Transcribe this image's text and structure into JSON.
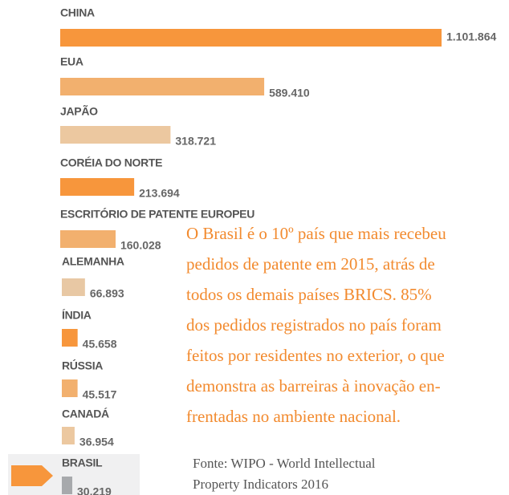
{
  "chart_data": {
    "type": "bar",
    "categories": [
      "CHINA",
      "EUA",
      "JAPÃO",
      "CORÉIA DO NORTE",
      "ESCRITÓRIO DE PATENTE EUROPEU",
      "ALEMANHA",
      "ÍNDIA",
      "RÚSSIA",
      "CANADÁ",
      "BRASIL"
    ],
    "values": [
      1101864,
      589410,
      318721,
      213694,
      160028,
      66893,
      45658,
      45517,
      36954,
      30219
    ],
    "value_labels": [
      "1.101.864",
      "589.410",
      "318.721",
      "213.694",
      "160.028",
      "66.893",
      "45.658",
      "45.517",
      "36.954",
      "30.219"
    ],
    "colors": [
      "#f7963c",
      "#f2b06e",
      "#ecc8a0",
      "#f7963c",
      "#f2b06e",
      "#e8c8a4",
      "#f7963c",
      "#f2b06e",
      "#ecc8a0",
      "#a7a9ac"
    ],
    "highlight": "BRASIL",
    "annotation": [
      "O Brasil é o 10º país que mais recebeu",
      "pedidos de patente em 2015, atrás de",
      "todos os demais países BRICS. 85%",
      "dos pedidos registrados no país foram",
      "feitos por residentes no exterior, o que",
      "demonstra as barreiras à inovação en-",
      "frentadas no ambiente nacional."
    ],
    "source": [
      "Fonte: WIPO - World Intellectual",
      "Property Indicators 2016"
    ]
  }
}
